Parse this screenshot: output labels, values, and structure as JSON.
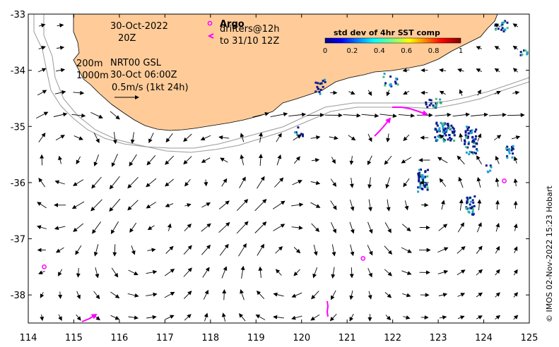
{
  "chart_data": {
    "type": "map",
    "xlim": [
      114,
      125
    ],
    "ylim": [
      -38.5,
      -33
    ],
    "x_ticks": [
      "114",
      "115",
      "116",
      "117",
      "118",
      "119",
      "120",
      "121",
      "122",
      "123",
      "124",
      "125"
    ],
    "y_ticks": [
      "-33",
      "-34",
      "-35",
      "-36",
      "-37",
      "-38"
    ],
    "annotations": {
      "date": "30-Oct-2022",
      "hour": "20Z",
      "depth_200": "200m",
      "depth_1000": "1000m",
      "product": "NRT00 GSL",
      "product_time": "30-Oct 06:00Z",
      "scale": "0.5m/s (1kt 24h)"
    },
    "legend": {
      "argo_label": "Argo",
      "drifters_label": "drifters@12h",
      "drifters_to": "to 31/10 12Z"
    },
    "colorbar": {
      "title": "std dev of 4hr SST comp",
      "ticks": [
        "0",
        "0.2",
        "0.4",
        "0.6",
        "0.8",
        "1"
      ]
    },
    "argo_floats": [
      [
        114.35,
        -37.5
      ],
      [
        121.35,
        -37.35
      ],
      [
        124.45,
        -35.97
      ]
    ],
    "credit": "© IMOS 02-Nov-2022 15:23 Hobart",
    "colors": {
      "land": "#FFCC99",
      "float_marker": "#FF00FF",
      "sst_high": "#0A1A8C",
      "sst_mid": "#1FA0D0",
      "sst_green": "#44C07A"
    }
  }
}
